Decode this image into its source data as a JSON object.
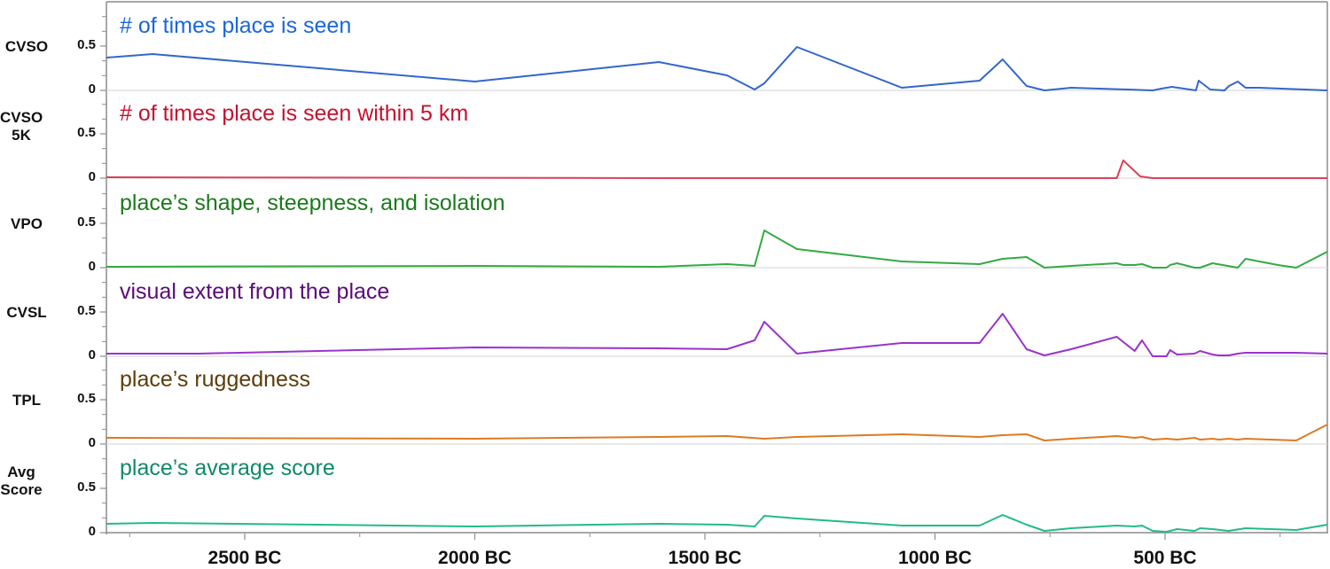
{
  "chart_data": {
    "type": "line",
    "title": "",
    "xlabel": "",
    "ylabel": "",
    "x_unit": "years BC",
    "x_axis": {
      "range": [
        2801,
        147
      ],
      "reversed": true,
      "tick_values": [
        2500,
        2000,
        1500,
        1000,
        500
      ],
      "tick_labels": [
        "2500 BC",
        "2000 BC",
        "1500 BC",
        "1000 BC",
        "500 BC"
      ],
      "minor_tick_values": [
        2750,
        2250,
        1750,
        1250,
        750,
        250
      ]
    },
    "y_axis": {
      "range": [
        0,
        1
      ],
      "tick_values": [
        0,
        0.5
      ],
      "tick_labels": [
        "0",
        "0.5"
      ],
      "per_panel": true
    },
    "grid": false,
    "legend_position": "inline-titles",
    "panels": [
      {
        "id": "cvso",
        "label": "CVSO",
        "title": "# of times place is seen",
        "line_color": "#3366cc",
        "title_color": "#1a66e0",
        "x": [
          2801,
          2700,
          2000,
          1600,
          1452,
          1392,
          1371,
          1300,
          1072,
          903,
          853,
          801,
          762,
          704,
          581,
          527,
          508,
          485,
          433,
          427,
          402,
          371,
          361,
          342,
          325,
          296,
          147
        ],
        "values": [
          0.37,
          0.41,
          0.1,
          0.32,
          0.17,
          0.01,
          0.08,
          0.49,
          0.03,
          0.11,
          0.35,
          0.05,
          0.0,
          0.03,
          0.01,
          0.0,
          0.02,
          0.04,
          0.0,
          0.11,
          0.01,
          0.0,
          0.05,
          0.1,
          0.03,
          0.03,
          0.0
        ]
      },
      {
        "id": "cvso5k",
        "label": "CVSO\n5K",
        "title": "# of times place is seen within 5 km",
        "line_color": "#d9415a",
        "title_color": "#c8102e",
        "x": [
          2801,
          1500,
          605,
          591,
          554,
          527,
          147
        ],
        "values": [
          0.01,
          0.0,
          0.0,
          0.2,
          0.02,
          0.0,
          0.0
        ]
      },
      {
        "id": "vpo",
        "label": "VPO",
        "title": "place’s shape, steepness, and isolation",
        "line_color": "#33aa44",
        "title_color": "#1a7a1a",
        "x": [
          2801,
          2000,
          1600,
          1452,
          1392,
          1371,
          1300,
          1072,
          903,
          853,
          801,
          762,
          704,
          605,
          591,
          566,
          550,
          527,
          497,
          489,
          474,
          436,
          424,
          397,
          342,
          325,
          255,
          215,
          147
        ],
        "values": [
          0.01,
          0.02,
          0.01,
          0.04,
          0.02,
          0.42,
          0.21,
          0.07,
          0.04,
          0.1,
          0.12,
          0.0,
          0.02,
          0.05,
          0.03,
          0.03,
          0.04,
          0.0,
          0.0,
          0.03,
          0.05,
          0.0,
          0.0,
          0.05,
          0.0,
          0.1,
          0.03,
          0.0,
          0.18
        ]
      },
      {
        "id": "cvsl",
        "label": "CVSL",
        "title": "visual extent from the place",
        "line_color": "#9933cc",
        "title_color": "#5a0a7a",
        "x": [
          2801,
          2600,
          2000,
          1600,
          1452,
          1392,
          1371,
          1300,
          1072,
          903,
          853,
          801,
          762,
          704,
          605,
          566,
          550,
          527,
          497,
          489,
          474,
          436,
          424,
          397,
          383,
          362,
          342,
          325,
          215,
          147
        ],
        "values": [
          0.03,
          0.03,
          0.1,
          0.09,
          0.08,
          0.18,
          0.39,
          0.03,
          0.15,
          0.15,
          0.48,
          0.08,
          0.01,
          0.08,
          0.22,
          0.06,
          0.18,
          0.0,
          0.0,
          0.07,
          0.02,
          0.03,
          0.06,
          0.02,
          0.01,
          0.01,
          0.03,
          0.04,
          0.04,
          0.03
        ]
      },
      {
        "id": "tpl",
        "label": "TPL",
        "title": "place’s ruggedness",
        "line_color": "#dd7a22",
        "title_color": "#5c3d0a",
        "x": [
          2801,
          2000,
          1600,
          1452,
          1371,
          1300,
          1072,
          903,
          853,
          801,
          762,
          704,
          605,
          566,
          550,
          527,
          497,
          474,
          436,
          424,
          397,
          383,
          362,
          342,
          325,
          215,
          147
        ],
        "values": [
          0.07,
          0.06,
          0.08,
          0.09,
          0.06,
          0.08,
          0.11,
          0.08,
          0.1,
          0.11,
          0.04,
          0.06,
          0.09,
          0.07,
          0.08,
          0.05,
          0.06,
          0.05,
          0.07,
          0.05,
          0.06,
          0.05,
          0.06,
          0.05,
          0.06,
          0.04,
          0.22
        ]
      },
      {
        "id": "avg",
        "label": "Avg\nScore",
        "title": "place’s average score",
        "line_color": "#22bb88",
        "title_color": "#0f8a6a",
        "x": [
          2801,
          2700,
          2000,
          1600,
          1452,
          1392,
          1371,
          1300,
          1072,
          903,
          853,
          801,
          762,
          704,
          605,
          566,
          550,
          527,
          497,
          474,
          436,
          424,
          397,
          362,
          325,
          215,
          147
        ],
        "values": [
          0.1,
          0.11,
          0.07,
          0.1,
          0.09,
          0.07,
          0.19,
          0.16,
          0.08,
          0.08,
          0.2,
          0.09,
          0.02,
          0.05,
          0.08,
          0.07,
          0.08,
          0.02,
          0.01,
          0.04,
          0.02,
          0.05,
          0.04,
          0.02,
          0.05,
          0.03,
          0.09
        ]
      }
    ]
  }
}
